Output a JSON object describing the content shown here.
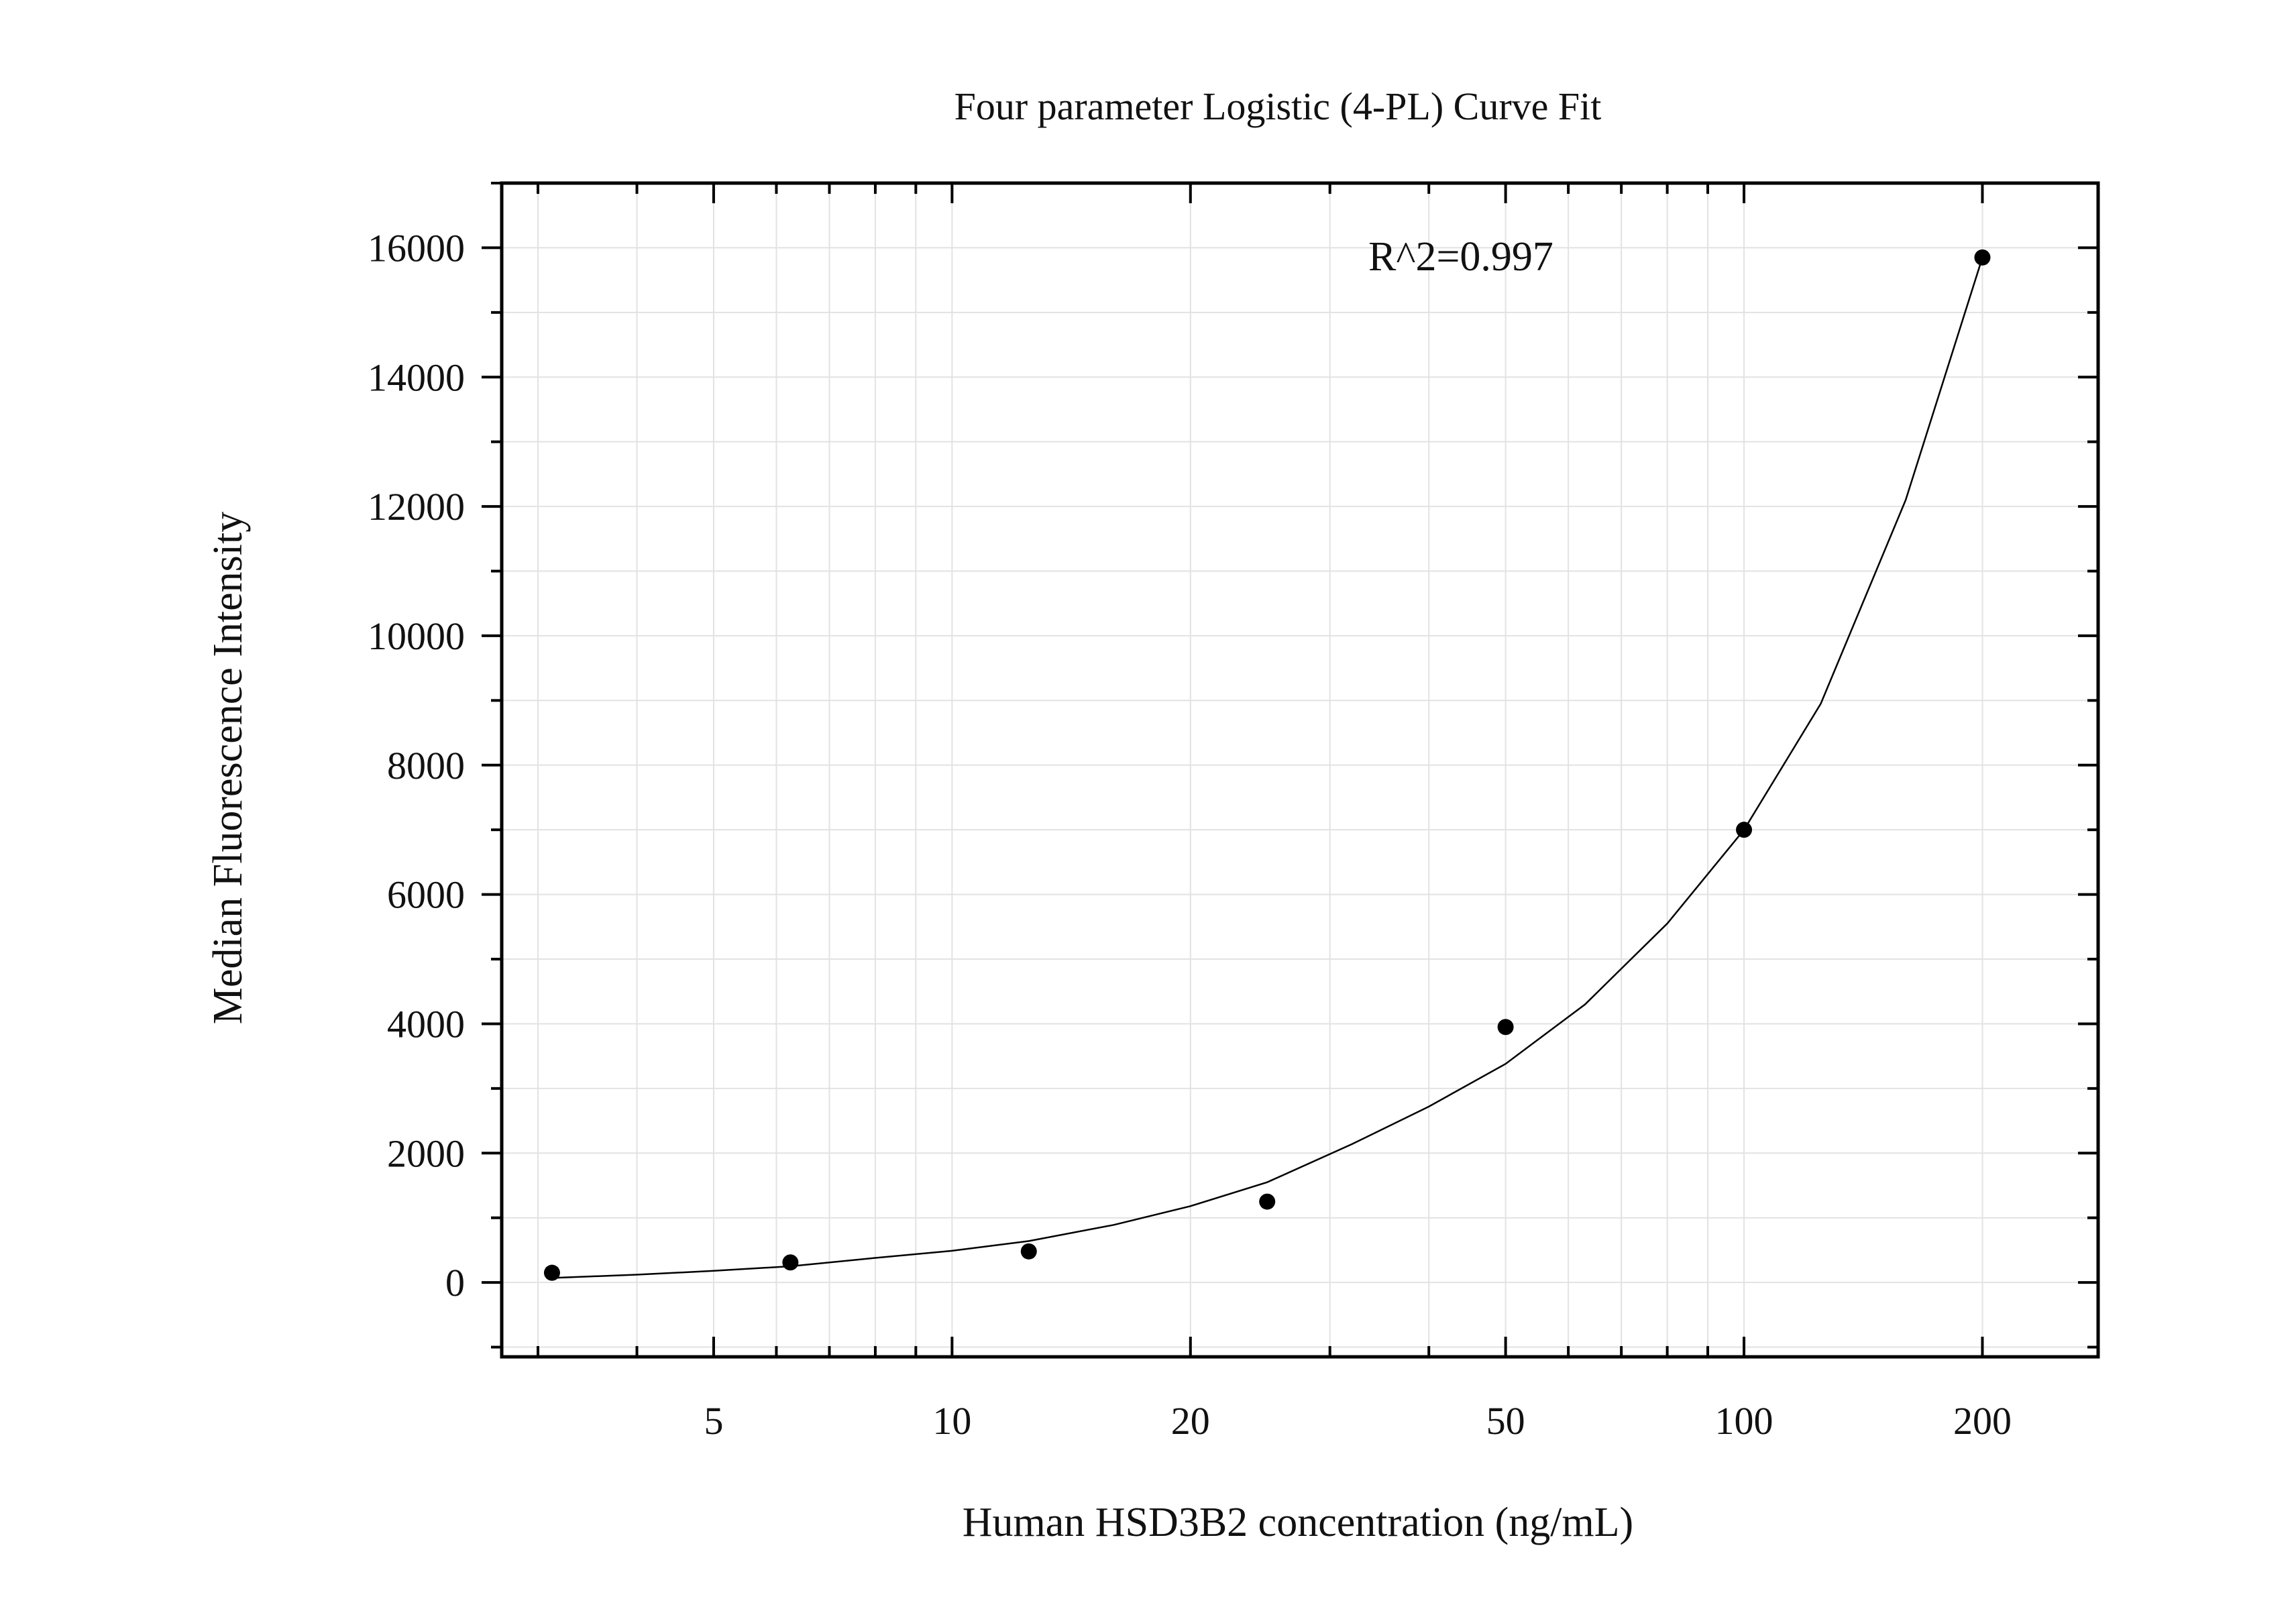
{
  "chart_data": {
    "type": "scatter",
    "title": "Four parameter Logistic (4-PL) Curve Fit",
    "xlabel": "Human HSD3B2 concentration (ng/mL)",
    "ylabel": "Median Fluorescence Intensity",
    "x_scale": "log",
    "xlim": [
      2.7,
      280
    ],
    "ylim": [
      -1150,
      17000
    ],
    "x_ticks": [
      5,
      10,
      20,
      50,
      100,
      200
    ],
    "x_tick_labels": [
      "5",
      "10",
      "20",
      "50",
      "100",
      "200"
    ],
    "y_ticks": [
      0,
      2000,
      4000,
      6000,
      8000,
      10000,
      12000,
      14000,
      16000
    ],
    "y_tick_labels": [
      "0",
      "2000",
      "4000",
      "6000",
      "8000",
      "10000",
      "12000",
      "14000",
      "16000"
    ],
    "grid": true,
    "annotation": "R^2=0.997",
    "points": {
      "x": [
        3.125,
        6.25,
        12.5,
        25,
        50,
        100,
        200
      ],
      "y": [
        150,
        310,
        480,
        1250,
        3950,
        7000,
        15850
      ]
    },
    "fit_curve": {
      "x": [
        3.125,
        4,
        5,
        6.25,
        8,
        10,
        12.5,
        16,
        20,
        25,
        32,
        40,
        50,
        63,
        80,
        100,
        125,
        160,
        200
      ],
      "y": [
        70,
        120,
        180,
        250,
        380,
        490,
        640,
        890,
        1180,
        1550,
        2140,
        2720,
        3380,
        4300,
        5550,
        7000,
        8950,
        12100,
        15850
      ]
    },
    "colors": {
      "points": "#000000",
      "curve": "#000000",
      "grid": "#e2e2e2",
      "axes": "#000000"
    }
  }
}
